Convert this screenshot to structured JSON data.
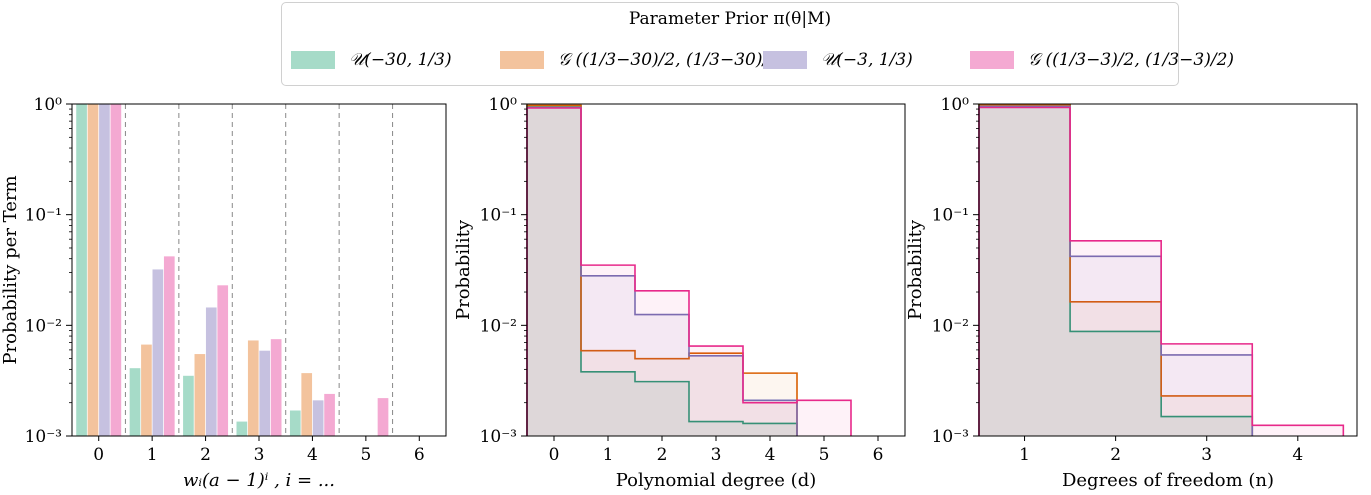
{
  "legend": {
    "title": "Parameter Prior π(θ|M)",
    "entries": [
      {
        "label": "𝒰(−30, 1/3)",
        "color": "#a6dbc8"
      },
      {
        "label": "𝒢 ((1/3−30)/2, (1/3−30)/2)",
        "color": "#f3c39d"
      },
      {
        "label": "𝒰(−3, 1/3)",
        "color": "#c6c1e0"
      },
      {
        "label": "𝒢 ((1/3−3)/2, (1/3−3)/2)",
        "color": "#f4a9d2"
      }
    ]
  },
  "chart_data": [
    {
      "type": "bar",
      "yscale": "log",
      "ylim": [
        0.001,
        1
      ],
      "ylabel": "Probability per Term",
      "xlabel": "wᵢ(a − 1)ⁱ , i = ...",
      "categories": [
        "0",
        "1",
        "2",
        "3",
        "4",
        "5",
        "6"
      ],
      "series": [
        {
          "name": "𝒰(−30, 1/3)",
          "color": "#a6dbc8",
          "values": [
            1.0,
            0.0041,
            0.0035,
            0.00135,
            0.0017,
            null,
            null
          ]
        },
        {
          "name": "𝒢 ((1/3−30)/2, (1/3−30)/2)",
          "color": "#f3c39d",
          "values": [
            1.0,
            0.0067,
            0.0055,
            0.0073,
            0.0037,
            null,
            null
          ]
        },
        {
          "name": "𝒰(−3, 1/3)",
          "color": "#c6c1e0",
          "values": [
            1.0,
            0.032,
            0.0145,
            0.0059,
            0.0021,
            null,
            null
          ]
        },
        {
          "name": "𝒢 ((1/3−3)/2, (1/3−3)/2)",
          "color": "#f4a9d2",
          "values": [
            1.0,
            0.042,
            0.023,
            0.0075,
            0.0024,
            0.0022,
            null
          ]
        }
      ],
      "yticks": [
        "10⁰",
        "10⁻¹",
        "10⁻²",
        "10⁻³"
      ],
      "dashed_separators": true
    },
    {
      "type": "step-histogram",
      "yscale": "log",
      "ylim": [
        0.001,
        1
      ],
      "ylabel": "Probability",
      "xlabel": "Polynomial degree (d)",
      "x": [
        0,
        1,
        2,
        3,
        4,
        5,
        6
      ],
      "xlim": [
        -0.5,
        6.5
      ],
      "series": [
        {
          "name": "𝒰(−30, 1/3)",
          "color": "#1b9e77",
          "values": [
            0.96,
            0.0038,
            0.0031,
            0.00135,
            0.0013,
            null,
            null
          ]
        },
        {
          "name": "𝒢 ((1/3−30)/2, (1/3−30)/2)",
          "color": "#d95f02",
          "values": [
            0.97,
            0.0059,
            0.005,
            0.0056,
            0.0037,
            null,
            null
          ]
        },
        {
          "name": "𝒰(−3, 1/3)",
          "color": "#7570b3",
          "values": [
            0.93,
            0.028,
            0.0125,
            0.0053,
            0.0021,
            null,
            null
          ]
        },
        {
          "name": "𝒢 ((1/3−3)/2, (1/3−3)/2)",
          "color": "#e7298a",
          "values": [
            0.92,
            0.035,
            0.0205,
            0.0065,
            0.002,
            0.0021,
            null
          ]
        }
      ],
      "yticks": [
        "10⁰",
        "10⁻¹",
        "10⁻²",
        "10⁻³"
      ]
    },
    {
      "type": "step-histogram",
      "yscale": "log",
      "ylim": [
        0.001,
        1
      ],
      "ylabel": "Probability",
      "xlabel": "Degrees of freedom (n)",
      "x": [
        1,
        2,
        3,
        4
      ],
      "xlim": [
        0.5,
        4.65
      ],
      "series": [
        {
          "name": "𝒰(−30, 1/3)",
          "color": "#1b9e77",
          "values": [
            0.99,
            0.0088,
            0.0015,
            null
          ]
        },
        {
          "name": "𝒢 ((1/3−30)/2, (1/3−30)/2)",
          "color": "#d95f02",
          "values": [
            0.98,
            0.0163,
            0.0023,
            null
          ]
        },
        {
          "name": "𝒰(−3, 1/3)",
          "color": "#7570b3",
          "values": [
            0.95,
            0.042,
            0.0054,
            null
          ]
        },
        {
          "name": "𝒢 ((1/3−3)/2, (1/3−3)/2)",
          "color": "#e7298a",
          "values": [
            0.93,
            0.058,
            0.0068,
            0.00125
          ]
        }
      ],
      "yticks": [
        "10⁰",
        "10⁻¹",
        "10⁻²",
        "10⁻³"
      ]
    }
  ]
}
